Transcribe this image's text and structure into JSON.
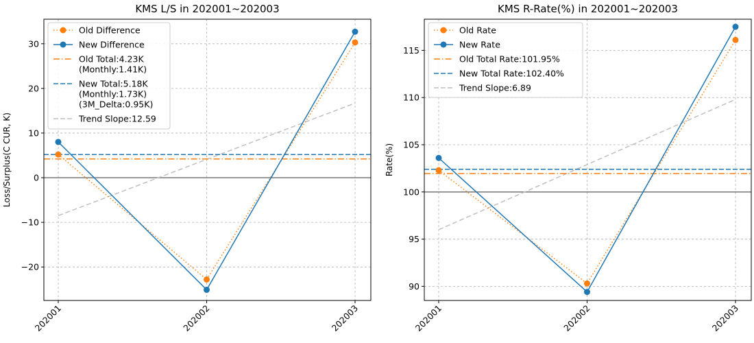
{
  "chart_data": [
    {
      "type": "line",
      "title": "KMS L/S in 202001~202003",
      "xlabel": "",
      "ylabel": "Loss/Surplus(C CUR, K)",
      "categories": [
        "202001",
        "202002",
        "202003"
      ],
      "ylim": [
        -27.5,
        35.5
      ],
      "yticks": [
        -20,
        -10,
        0,
        10,
        20,
        30
      ],
      "ytick_labels": [
        "−20",
        "−10",
        "0",
        "10",
        "20",
        "30"
      ],
      "grid": true,
      "legend_position": "top-left",
      "series": [
        {
          "name": "Old Difference",
          "values": [
            5.2,
            -22.8,
            30.3
          ],
          "color": "#ff7f0e",
          "style": "dotted",
          "marker": true
        },
        {
          "name": "New Difference",
          "values": [
            8.0,
            -25.1,
            32.7
          ],
          "color": "#1f77b4",
          "style": "solid",
          "marker": true
        }
      ],
      "hlines": [
        {
          "name": "Old Total:4.23K\n(Monthly:1.41K)",
          "y": 4.2,
          "color": "#ff7f0e",
          "style": "dashdot"
        },
        {
          "name": "New Total:5.18K\n(Monthly:1.73K)\n(3M_Delta:0.95K)",
          "y": 5.2,
          "color": "#1f77b4",
          "style": "dashed"
        }
      ],
      "reference_line": {
        "y": 0,
        "color": "#808080"
      },
      "trend": {
        "name": "Trend Slope:12.59",
        "values": [
          -8.5,
          4.1,
          16.7
        ],
        "color": "#bfbfbf"
      }
    },
    {
      "type": "line",
      "title": "KMS R-Rate(%) in 202001~202003",
      "xlabel": "",
      "ylabel": "Rate(%)",
      "categories": [
        "202001",
        "202002",
        "202003"
      ],
      "ylim": [
        88.5,
        118.3
      ],
      "yticks": [
        90,
        95,
        100,
        105,
        110,
        115
      ],
      "ytick_labels": [
        "90",
        "95",
        "100",
        "105",
        "110",
        "115"
      ],
      "grid": true,
      "legend_position": "top-left",
      "series": [
        {
          "name": "Old Rate",
          "values": [
            102.3,
            90.3,
            116.1
          ],
          "color": "#ff7f0e",
          "style": "dotted",
          "marker": true
        },
        {
          "name": "New Rate",
          "values": [
            103.6,
            89.4,
            117.5
          ],
          "color": "#1f77b4",
          "style": "solid",
          "marker": true
        }
      ],
      "hlines": [
        {
          "name": "Old Total Rate:101.95%",
          "y": 101.95,
          "color": "#ff7f0e",
          "style": "dashdot"
        },
        {
          "name": "New Total Rate:102.40%",
          "y": 102.4,
          "color": "#1f77b4",
          "style": "dashed"
        }
      ],
      "reference_line": {
        "y": 100,
        "color": "#808080"
      },
      "trend": {
        "name": "Trend Slope:6.89",
        "values": [
          96.0,
          102.9,
          109.8
        ],
        "color": "#bfbfbf"
      }
    }
  ]
}
